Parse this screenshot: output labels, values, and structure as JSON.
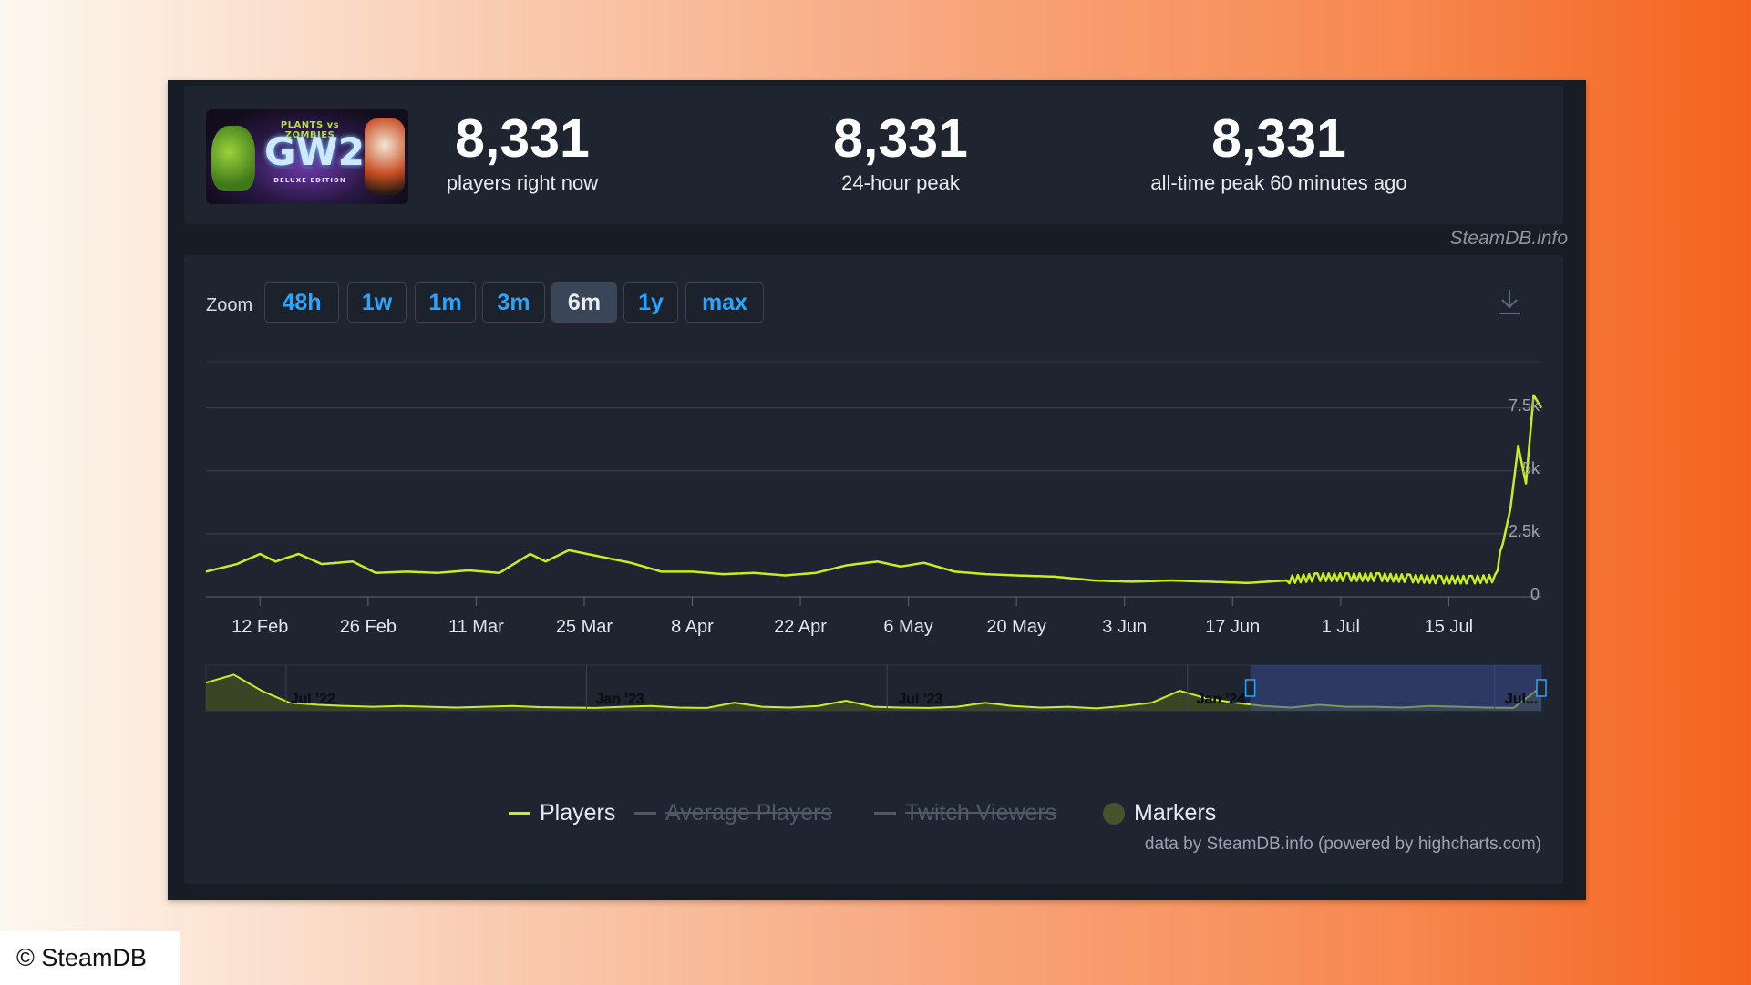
{
  "stats": [
    {
      "value": "8,331",
      "label": "players right now"
    },
    {
      "value": "8,331",
      "label": "24-hour peak"
    },
    {
      "value": "8,331",
      "label": "all-time peak 60 minutes ago"
    }
  ],
  "thumbnail": {
    "line1": "PLANTS vs ZOMBIES",
    "line2": "GW2",
    "line3": "DELUXE EDITION"
  },
  "brand": "SteamDB.info",
  "zoom": {
    "label": "Zoom",
    "buttons": [
      "48h",
      "1w",
      "1m",
      "3m",
      "6m",
      "1y",
      "max"
    ],
    "active": "6m"
  },
  "download_icon": "download-icon",
  "chart_data": {
    "type": "line",
    "x_ticks": [
      "12 Feb",
      "26 Feb",
      "11 Mar",
      "25 Mar",
      "8 Apr",
      "22 Apr",
      "6 May",
      "20 May",
      "3 Jun",
      "17 Jun",
      "1 Jul",
      "15 Jul"
    ],
    "y_ticks": [
      "0",
      "2.5k",
      "5k",
      "7.5k"
    ],
    "ylim": [
      0,
      8500
    ],
    "grid": true,
    "series": [
      {
        "name": "Players",
        "color": "#c5f01f",
        "x": [
          "2024-02-05",
          "2024-02-09",
          "2024-02-12",
          "2024-02-14",
          "2024-02-17",
          "2024-02-20",
          "2024-02-24",
          "2024-02-27",
          "2024-03-02",
          "2024-03-06",
          "2024-03-10",
          "2024-03-14",
          "2024-03-18",
          "2024-03-20",
          "2024-03-23",
          "2024-03-27",
          "2024-03-31",
          "2024-04-04",
          "2024-04-08",
          "2024-04-12",
          "2024-04-16",
          "2024-04-20",
          "2024-04-24",
          "2024-04-28",
          "2024-05-02",
          "2024-05-05",
          "2024-05-08",
          "2024-05-12",
          "2024-05-16",
          "2024-05-20",
          "2024-05-25",
          "2024-05-30",
          "2024-06-04",
          "2024-06-09",
          "2024-06-14",
          "2024-06-19",
          "2024-06-24",
          "2024-06-28",
          "2024-07-02",
          "2024-07-06",
          "2024-07-10",
          "2024-07-14",
          "2024-07-18",
          "2024-07-21",
          "2024-07-23",
          "2024-07-24",
          "2024-07-25",
          "2024-07-26",
          "2024-07-27"
        ],
        "y": [
          1000,
          1300,
          1700,
          1400,
          1700,
          1300,
          1400,
          950,
          1000,
          950,
          1050,
          950,
          1700,
          1400,
          1850,
          1600,
          1350,
          1000,
          1000,
          900,
          950,
          850,
          950,
          1250,
          1400,
          1200,
          1350,
          1000,
          900,
          850,
          800,
          650,
          600,
          650,
          600,
          550,
          650,
          750,
          750,
          750,
          700,
          650,
          650,
          700,
          3500,
          6000,
          4500,
          8000,
          7500
        ]
      },
      {
        "name": "Average Players",
        "visible": false
      },
      {
        "name": "Twitch Viewers",
        "visible": false
      }
    ]
  },
  "navigator": {
    "labels": [
      "Jul '22",
      "Jan '23",
      "Jul '23",
      "Jan '24",
      "Jul..."
    ]
  },
  "legend": {
    "players": "Players",
    "avg": "Average Players",
    "twitch": "Twitch Viewers",
    "markers": "Markers"
  },
  "credit": "data by SteamDB.info (powered by highcharts.com)",
  "copyright": "© SteamDB"
}
